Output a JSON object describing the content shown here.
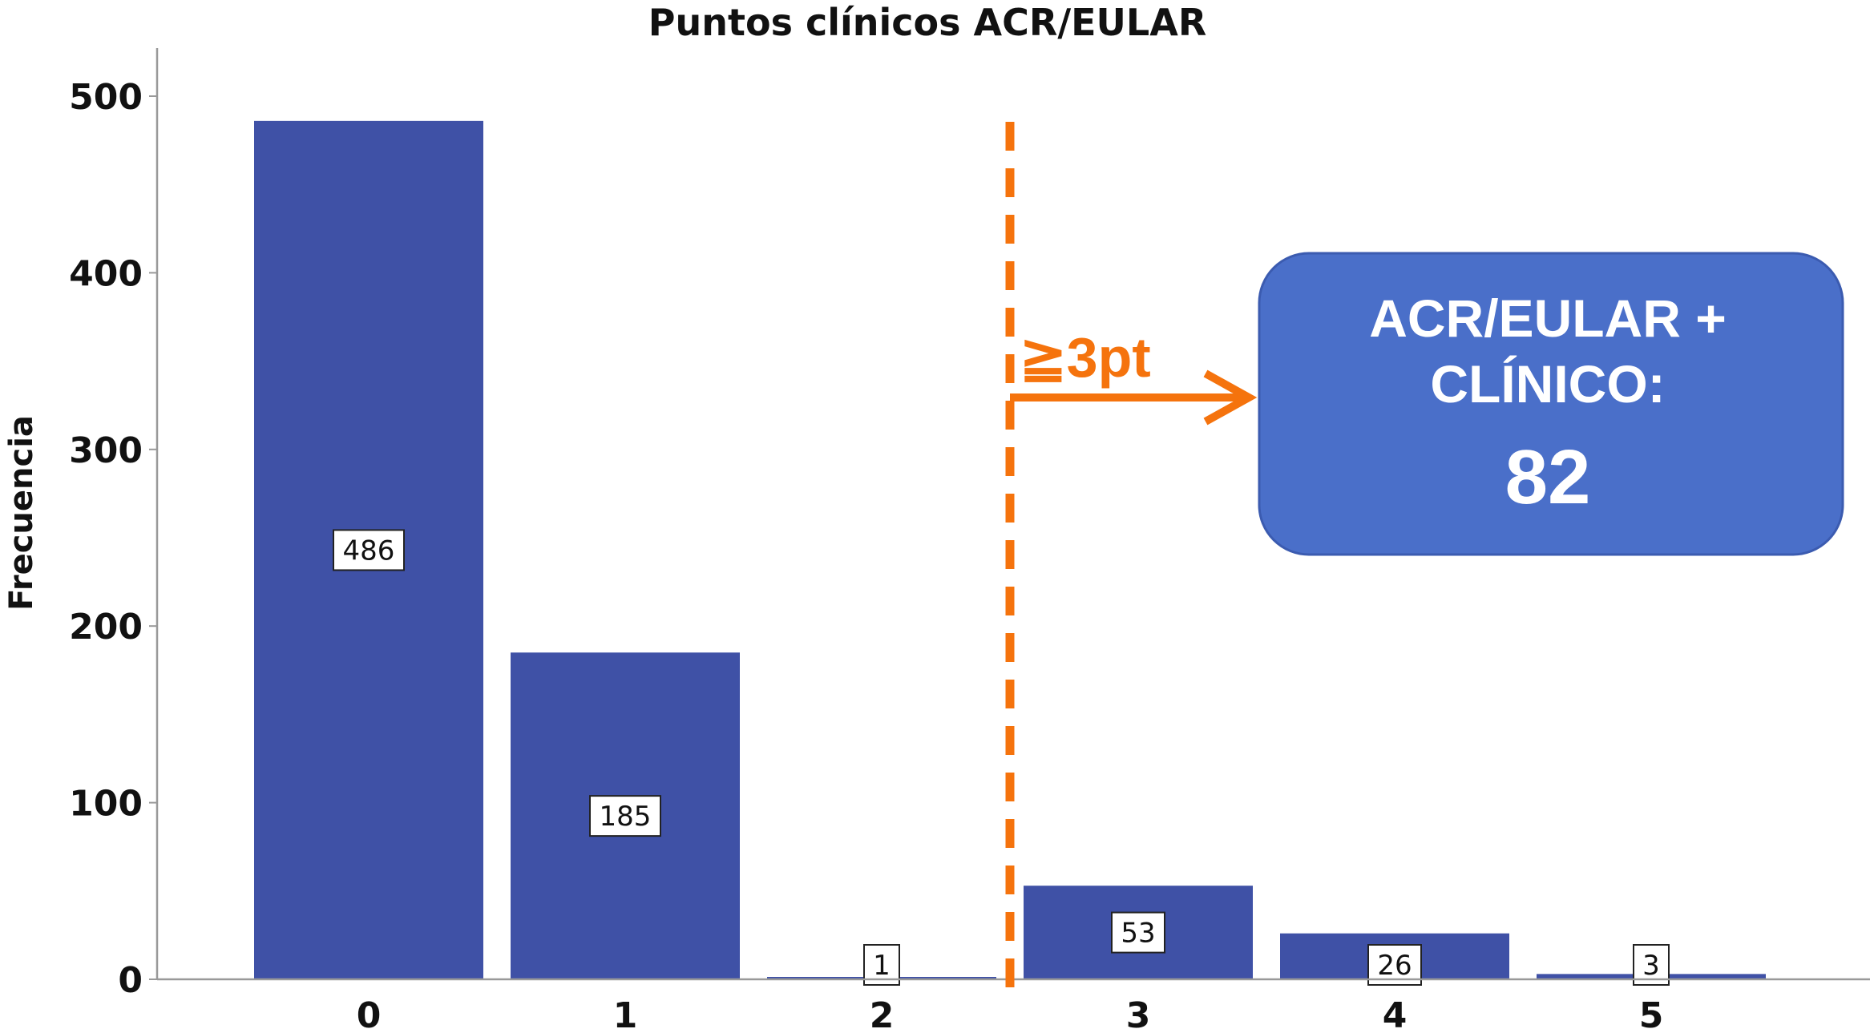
{
  "chart_data": {
    "type": "bar",
    "title": "Puntos clínicos ACR/EULAR",
    "xlabel": "",
    "ylabel": "Frecuencia",
    "categories": [
      "0",
      "1",
      "2",
      "3",
      "4",
      "5"
    ],
    "values": [
      486,
      185,
      1,
      53,
      26,
      3
    ],
    "data_labels": [
      "486",
      "185",
      "1",
      "53",
      "26",
      "3"
    ],
    "ylim": [
      0,
      500
    ],
    "yticks": [
      "0",
      "100",
      "200",
      "300",
      "400",
      "500"
    ],
    "grid": false,
    "bar_color": "#3f51a6",
    "threshold": {
      "between_categories": [
        "2",
        "3"
      ],
      "label": "≧3pt",
      "color": "#f5730d",
      "style": "dashed"
    },
    "callout": {
      "line1": "ACR/EULAR +",
      "line2": "CLÍNICO:",
      "value": "82",
      "color": "#4a6fc9"
    }
  }
}
